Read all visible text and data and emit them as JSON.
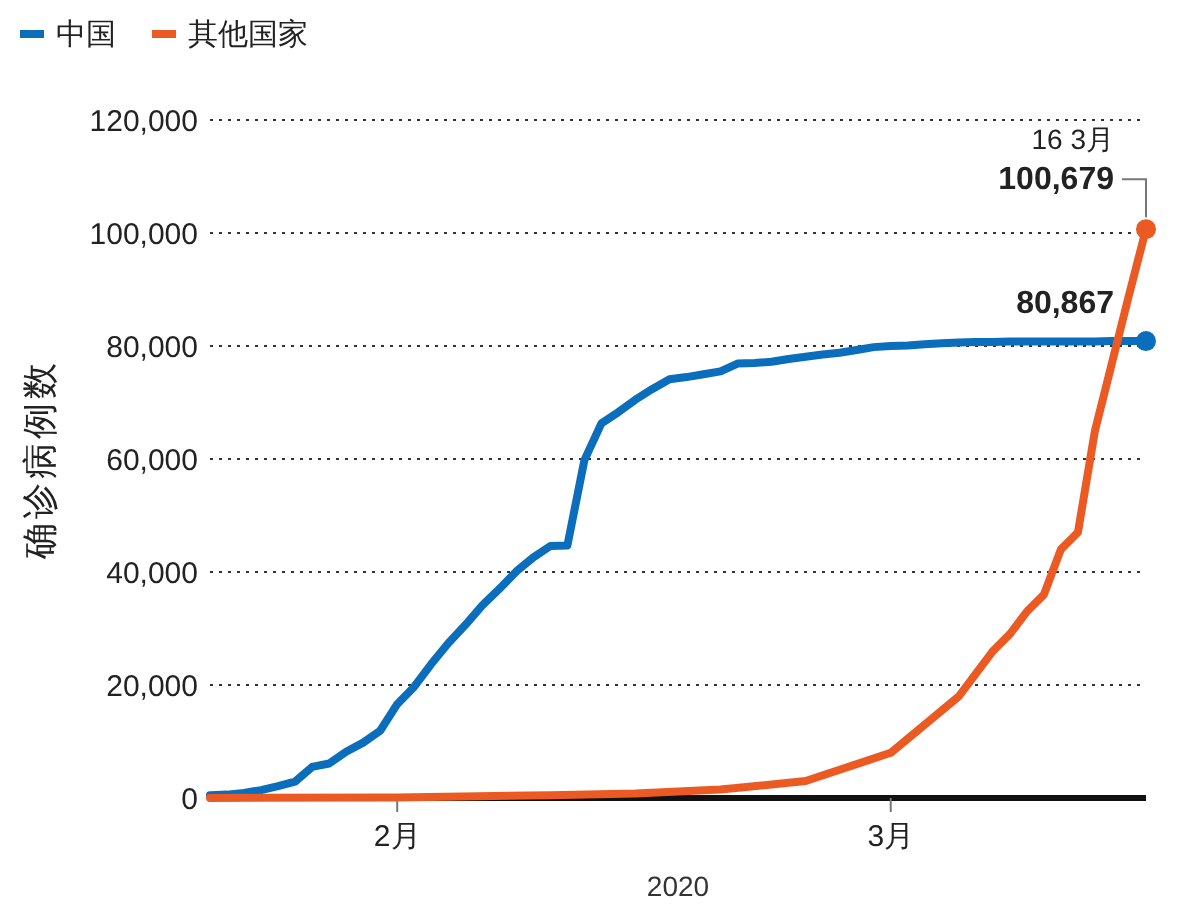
{
  "chart_data": {
    "type": "line",
    "xlabel": "2020",
    "ylabel": "确诊病例数",
    "xlim": [
      "2020-01-21",
      "2020-03-16"
    ],
    "xticks": [
      {
        "value": "2020-02-01",
        "label": "2月"
      },
      {
        "value": "2020-03-01",
        "label": "3月"
      }
    ],
    "ylim": [
      0,
      120000
    ],
    "yticks": [
      {
        "value": 0,
        "label": "0"
      },
      {
        "value": 20000,
        "label": "20,000"
      },
      {
        "value": 40000,
        "label": "40,000"
      },
      {
        "value": 60000,
        "label": "60,000"
      },
      {
        "value": 80000,
        "label": "80,000"
      },
      {
        "value": 100000,
        "label": "100,000"
      },
      {
        "value": 120000,
        "label": "120,000"
      }
    ],
    "grid": "y",
    "legend": "top left",
    "series": [
      {
        "name": "中国",
        "color": "#0a6ebd",
        "x": [
          "2020-01-21",
          "2020-01-22",
          "2020-01-23",
          "2020-01-24",
          "2020-01-25",
          "2020-01-26",
          "2020-01-27",
          "2020-01-28",
          "2020-01-29",
          "2020-01-30",
          "2020-01-31",
          "2020-02-01",
          "2020-02-02",
          "2020-02-03",
          "2020-02-04",
          "2020-02-05",
          "2020-02-06",
          "2020-02-07",
          "2020-02-08",
          "2020-02-09",
          "2020-02-10",
          "2020-02-11",
          "2020-02-12",
          "2020-02-13",
          "2020-02-14",
          "2020-02-15",
          "2020-02-16",
          "2020-02-17",
          "2020-02-18",
          "2020-02-19",
          "2020-02-20",
          "2020-02-21",
          "2020-02-22",
          "2020-02-23",
          "2020-02-24",
          "2020-02-25",
          "2020-02-26",
          "2020-02-27",
          "2020-02-28",
          "2020-02-29",
          "2020-03-01",
          "2020-03-02",
          "2020-03-03",
          "2020-03-04",
          "2020-03-05",
          "2020-03-06",
          "2020-03-07",
          "2020-03-08",
          "2020-03-09",
          "2020-03-10",
          "2020-03-11",
          "2020-03-12",
          "2020-03-13",
          "2020-03-14",
          "2020-03-15",
          "2020-03-16"
        ],
        "values": [
          500,
          600,
          900,
          1400,
          2100,
          2900,
          5500,
          6100,
          8200,
          9800,
          11900,
          16600,
          19700,
          23700,
          27400,
          30600,
          34100,
          37000,
          40100,
          42600,
          44600,
          44700,
          59800,
          66300,
          68300,
          70500,
          72400,
          74100,
          74500,
          75000,
          75500,
          76900,
          77000,
          77200,
          77700,
          78100,
          78500,
          78800,
          79300,
          79800,
          80000,
          80100,
          80300,
          80500,
          80600,
          80700,
          80700,
          80800,
          80800,
          80800,
          80800,
          80800,
          80800,
          80900,
          80900,
          80867
        ]
      },
      {
        "name": "其他国家",
        "color": "#ec5a24",
        "x": [
          "2020-01-21",
          "2020-02-01",
          "2020-02-10",
          "2020-02-15",
          "2020-02-20",
          "2020-02-25",
          "2020-02-27",
          "2020-03-01",
          "2020-03-03",
          "2020-03-05",
          "2020-03-07",
          "2020-03-08",
          "2020-03-09",
          "2020-03-10",
          "2020-03-11",
          "2020-03-12",
          "2020-03-13",
          "2020-03-14",
          "2020-03-15",
          "2020-03-16"
        ],
        "values": [
          0,
          100,
          500,
          800,
          1500,
          3000,
          5000,
          8000,
          13000,
          18000,
          26000,
          29000,
          33000,
          36000,
          44000,
          47000,
          65000,
          77000,
          89000,
          100679
        ]
      }
    ],
    "annotations": [
      {
        "text": "16 3月",
        "x": "2020-03-16",
        "y": 100679
      },
      {
        "text": "100,679",
        "x": "2020-03-16",
        "y": 100679
      },
      {
        "text": "80,867",
        "x": "2020-03-16",
        "y": 80867
      }
    ]
  }
}
